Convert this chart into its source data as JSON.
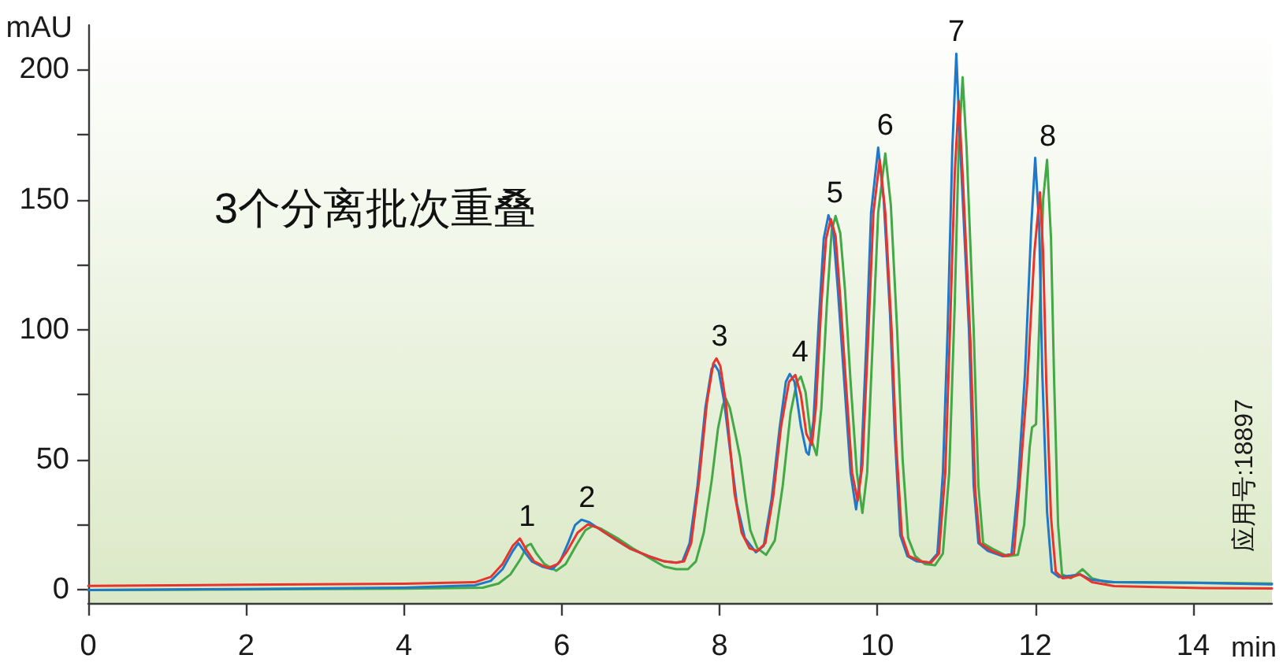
{
  "chart_data": {
    "type": "line",
    "title": "3个分离批次重叠",
    "xlabel": "min",
    "ylabel": "mAU",
    "xlim": [
      0,
      15
    ],
    "xticks": [
      0,
      2,
      4,
      6,
      8,
      10,
      12,
      14
    ],
    "ylim": [
      -5,
      217
    ],
    "yticks": [
      0,
      {
        "value": 25,
        "label": null
      },
      50,
      {
        "value": 75,
        "label": null
      },
      100,
      {
        "value": 125,
        "label": null
      },
      150,
      {
        "value": 175,
        "label": null
      },
      200
    ],
    "grid": false,
    "marker": "none",
    "line_style": "solid",
    "annotations": [
      {
        "text": "1",
        "x": 5.56,
        "y": 19.8
      },
      {
        "text": "2",
        "x": 6.32,
        "y": 27
      },
      {
        "text": "3",
        "x": 8.0,
        "y": 89
      },
      {
        "text": "4",
        "x": 9.02,
        "y": 83
      },
      {
        "text": "5",
        "x": 9.46,
        "y": 144
      },
      {
        "text": "6",
        "x": 10.1,
        "y": 170
      },
      {
        "text": "7",
        "x": 11.0,
        "y": 206
      },
      {
        "text": "8",
        "x": 12.16,
        "y": 166
      },
      "应用号:18897"
    ],
    "series": [
      {
        "color": "#43a845",
        "x": [
          0,
          2,
          4,
          5,
          5.2,
          5.35,
          5.48,
          5.56,
          5.61,
          5.68,
          5.78,
          5.93,
          6.05,
          6.18,
          6.3,
          6.39,
          6.5,
          6.7,
          6.9,
          7.1,
          7.3,
          7.45,
          7.6,
          7.7,
          7.8,
          7.9,
          7.98,
          8.04,
          8.08,
          8.13,
          8.2,
          8.26,
          8.33,
          8.39,
          8.48,
          8.59,
          8.7,
          8.8,
          8.9,
          8.98,
          9.03,
          9.09,
          9.16,
          9.23,
          9.29,
          9.36,
          9.42,
          9.47,
          9.53,
          9.59,
          9.66,
          9.74,
          9.81,
          9.87,
          9.94,
          10.01,
          10.1,
          10.17,
          10.25,
          10.32,
          10.39,
          10.48,
          10.6,
          10.73,
          10.83,
          10.91,
          10.98,
          11.03,
          11.08,
          11.13,
          11.22,
          11.28,
          11.34,
          11.48,
          11.65,
          11.78,
          11.86,
          11.93,
          11.96,
          12.01,
          12.06,
          12.1,
          12.15,
          12.2,
          12.24,
          12.29,
          12.34,
          12.45,
          12.52,
          12.6,
          12.72,
          12.9,
          14,
          15
        ],
        "values": [
          0,
          0.2,
          0.5,
          0.9,
          2.5,
          6,
          12,
          17,
          17.7,
          14,
          10,
          7.4,
          10,
          17,
          23,
          24.6,
          23.5,
          20,
          16,
          12.5,
          9,
          8,
          8,
          11,
          22,
          42,
          62,
          71,
          73.5,
          70,
          60,
          51,
          35,
          23,
          16,
          13.5,
          19,
          40,
          68,
          80,
          82,
          76,
          58,
          51.8,
          70,
          110,
          138,
          143.7,
          137,
          115,
          80,
          45,
          29.6,
          45,
          95,
          145,
          167.7,
          148,
          100,
          50,
          20,
          13,
          10,
          9.5,
          14,
          45,
          110,
          170,
          197,
          170,
          100,
          40,
          18,
          15.5,
          13,
          13.5,
          25,
          55,
          62.5,
          63.7,
          110,
          150,
          165.3,
          135,
          80,
          25,
          6,
          4.5,
          6,
          8,
          4.5,
          3,
          2.8,
          2.5
        ]
      },
      {
        "color": "#1f78c8",
        "x": [
          0,
          2,
          4,
          4.9,
          5.1,
          5.25,
          5.38,
          5.45,
          5.52,
          5.62,
          5.75,
          5.88,
          5.98,
          6.08,
          6.17,
          6.25,
          6.35,
          6.5,
          6.7,
          6.86,
          7.1,
          7.3,
          7.45,
          7.53,
          7.62,
          7.72,
          7.82,
          7.9,
          7.94,
          7.99,
          8.06,
          8.14,
          8.22,
          8.32,
          8.46,
          8.56,
          8.66,
          8.76,
          8.84,
          8.89,
          8.95,
          9.03,
          9.1,
          9.13,
          9.19,
          9.26,
          9.32,
          9.38,
          9.44,
          9.5,
          9.58,
          9.66,
          9.73,
          9.79,
          9.86,
          9.92,
          10.01,
          10.08,
          10.16,
          10.22,
          10.29,
          10.38,
          10.5,
          10.66,
          10.76,
          10.83,
          10.89,
          10.95,
          11.0,
          11.05,
          11.16,
          11.22,
          11.28,
          11.4,
          11.59,
          11.7,
          11.78,
          11.87,
          11.95,
          12.0,
          12.05,
          12.09,
          12.15,
          12.21,
          12.3,
          12.45,
          12.57,
          12.7,
          13,
          14,
          15
        ],
        "values": [
          0,
          0.4,
          0.9,
          1.8,
          3.5,
          8,
          15,
          18,
          15,
          11,
          9,
          8,
          11,
          18,
          25,
          27,
          26,
          23,
          19,
          16,
          13,
          11,
          10.5,
          11,
          18,
          40,
          70,
          85,
          86.5,
          84,
          72,
          52,
          33,
          20,
          14.5,
          17,
          35,
          62,
          80,
          83,
          80,
          63,
          53,
          52,
          65,
          105,
          135,
          144,
          138,
          115,
          80,
          45,
          31,
          45,
          95,
          145,
          170,
          150,
          106,
          60,
          21,
          13,
          11,
          10.5,
          14,
          45,
          100,
          170,
          206,
          170,
          100,
          40,
          18,
          15,
          13,
          14,
          40,
          83,
          140,
          166,
          140,
          83,
          30,
          7,
          5,
          5.5,
          6,
          4,
          3,
          2.8,
          2.2
        ]
      },
      {
        "color": "#e8342c",
        "x": [
          0,
          2,
          4,
          4.9,
          5.1,
          5.25,
          5.38,
          5.47,
          5.54,
          5.65,
          5.75,
          5.83,
          5.95,
          6.07,
          6.2,
          6.33,
          6.45,
          6.6,
          6.86,
          7.1,
          7.3,
          7.45,
          7.55,
          7.64,
          7.74,
          7.84,
          7.92,
          7.96,
          8.01,
          8.08,
          8.19,
          8.28,
          8.38,
          8.48,
          8.58,
          8.68,
          8.78,
          8.88,
          8.96,
          9.03,
          9.1,
          9.17,
          9.22,
          9.29,
          9.35,
          9.41,
          9.47,
          9.53,
          9.6,
          9.68,
          9.75,
          9.81,
          9.88,
          9.95,
          10.03,
          10.1,
          10.18,
          10.24,
          10.31,
          10.4,
          10.55,
          10.68,
          10.78,
          10.86,
          10.92,
          10.98,
          11.03,
          11.08,
          11.18,
          11.24,
          11.3,
          11.45,
          11.62,
          11.73,
          11.8,
          11.9,
          11.99,
          12.06,
          12.1,
          12.14,
          12.2,
          12.26,
          12.35,
          12.47,
          12.57,
          12.72,
          13,
          14,
          15
        ],
        "values": [
          1.6,
          2,
          2.4,
          3,
          5,
          10,
          17,
          19.8,
          16,
          11,
          9.5,
          8.5,
          10,
          15,
          22,
          25.2,
          24,
          21,
          16,
          13,
          11,
          10.5,
          11,
          18,
          42,
          72,
          87,
          89,
          86,
          72,
          37,
          22,
          16,
          15,
          18,
          36,
          63,
          80,
          82.6,
          75,
          60,
          55.8,
          70,
          110,
          135,
          142.5,
          136,
          112,
          80,
          45,
          34.3,
          48,
          95,
          145,
          165.3,
          145,
          100,
          55,
          21,
          13,
          11,
          10.5,
          14,
          45,
          100,
          160,
          188,
          160,
          95,
          38,
          18,
          15,
          13,
          14,
          40,
          80,
          130,
          152.8,
          130,
          80,
          28,
          7,
          4.5,
          5,
          6,
          3,
          1.5,
          0.8,
          0.6
        ]
      }
    ]
  }
}
